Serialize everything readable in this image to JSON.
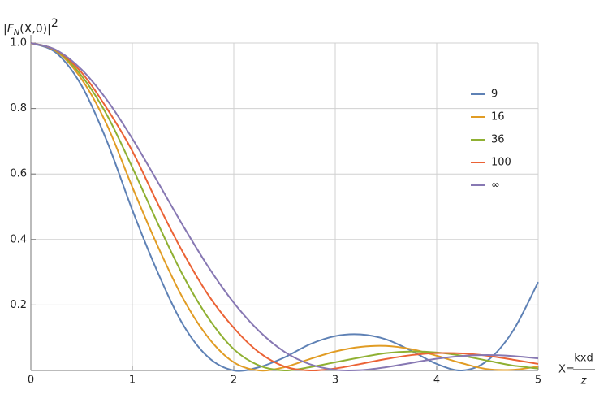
{
  "chart_data": {
    "type": "line",
    "ylabel": {
      "open": "|",
      "base": "F",
      "sub": "N",
      "rest": "(X,0)",
      "close": "|",
      "sup": "2"
    },
    "xlabel": {
      "lhs": "X=",
      "numerator": "kxd",
      "denominator": "z"
    },
    "x": [
      0,
      0.25,
      0.5,
      0.75,
      1,
      1.25,
      1.5,
      1.75,
      2,
      2.25,
      2.5,
      2.75,
      3,
      3.25,
      3.5,
      3.75,
      4,
      4.25,
      4.5,
      4.75,
      5
    ],
    "series": [
      {
        "name": "9",
        "color": "#5E81B5",
        "values": [
          1,
          0.97,
          0.87,
          0.7,
          0.49,
          0.3,
          0.14,
          0.04,
          0.0,
          0.01,
          0.04,
          0.08,
          0.105,
          0.11,
          0.095,
          0.06,
          0.02,
          0.0,
          0.03,
          0.12,
          0.27
        ]
      },
      {
        "name": "16",
        "color": "#E19C24",
        "values": [
          1,
          0.975,
          0.89,
          0.75,
          0.56,
          0.38,
          0.22,
          0.1,
          0.025,
          0.0,
          0.01,
          0.035,
          0.058,
          0.072,
          0.075,
          0.065,
          0.045,
          0.022,
          0.004,
          0.002,
          0.012
        ]
      },
      {
        "name": "36",
        "color": "#8FB032",
        "values": [
          1,
          0.977,
          0.9,
          0.78,
          0.62,
          0.45,
          0.29,
          0.16,
          0.065,
          0.015,
          0.0,
          0.01,
          0.025,
          0.04,
          0.053,
          0.058,
          0.055,
          0.045,
          0.03,
          0.015,
          0.006
        ]
      },
      {
        "name": "100",
        "color": "#EB6235",
        "values": [
          1,
          0.978,
          0.91,
          0.8,
          0.67,
          0.51,
          0.36,
          0.23,
          0.13,
          0.055,
          0.012,
          0.0,
          0.006,
          0.02,
          0.035,
          0.047,
          0.053,
          0.052,
          0.045,
          0.033,
          0.02
        ]
      },
      {
        "name": "∞",
        "color": "#8778B3",
        "values": [
          1,
          0.979,
          0.919,
          0.826,
          0.708,
          0.576,
          0.442,
          0.316,
          0.207,
          0.12,
          0.057,
          0.019,
          0.002,
          0.001,
          0.01,
          0.023,
          0.036,
          0.044,
          0.047,
          0.044,
          0.037
        ]
      }
    ],
    "xlim": [
      0,
      5
    ],
    "ylim": [
      0,
      1
    ],
    "xticks": [
      0,
      1,
      2,
      3,
      4,
      5
    ],
    "yticks": [
      0.2,
      0.4,
      0.6,
      0.8,
      {
        "value": 1,
        "label": "1.0"
      }
    ],
    "grid": true,
    "legend": "right"
  }
}
